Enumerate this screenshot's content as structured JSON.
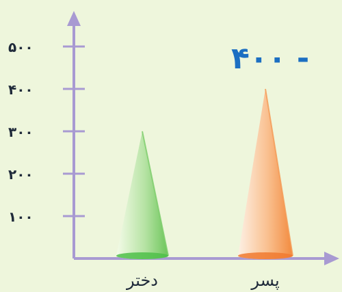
{
  "chart_data": {
    "type": "bar",
    "mark": "cone",
    "categories": [
      "دختر",
      "پسر"
    ],
    "values": [
      300,
      400
    ],
    "yticks": [
      "۱۰۰",
      "۲۰۰",
      "۳۰۰",
      "۴۰۰",
      "۵۰۰"
    ],
    "ytick_values": [
      100,
      200,
      300,
      400,
      500
    ],
    "ylim": [
      0,
      550
    ],
    "annotation": "۴۰۰ -",
    "grid": false,
    "legend": "none",
    "colors": {
      "axis": "#a89ad2",
      "background": "#eef6dc",
      "series": [
        "#7ccd6a",
        "#f59a55"
      ],
      "series_base": [
        "#4fbf4a",
        "#f07a30"
      ],
      "annotation": "#1c6fc2"
    }
  }
}
